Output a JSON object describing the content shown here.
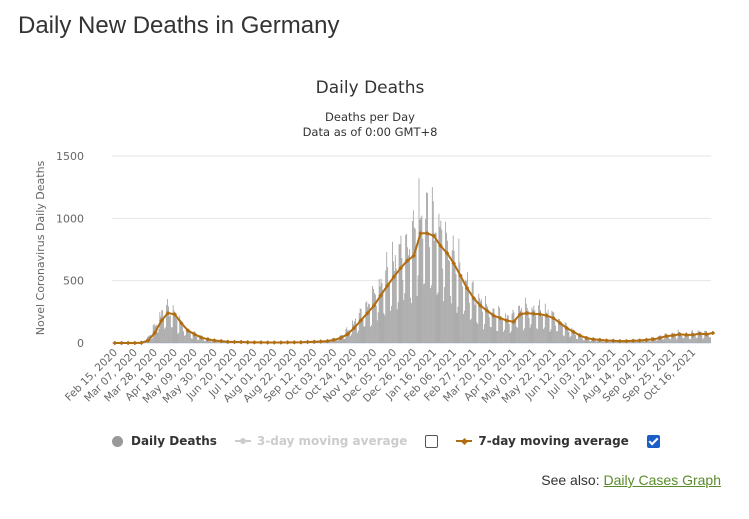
{
  "page": {
    "title": "Daily New Deaths in Germany"
  },
  "chart_data": {
    "type": "bar",
    "title": "Daily Deaths",
    "subtitle_lines": [
      "Deaths per Day",
      "Data as of 0:00 GMT+8"
    ],
    "ylabel": "Novel Coronavirus Daily Deaths",
    "xlabel": "",
    "ylim": [
      0,
      1500
    ],
    "y_ticks": [
      "0",
      "500",
      "1000",
      "1500"
    ],
    "grid": true,
    "x_tick_labels": [
      "Feb 15, 2020",
      "Mar 07, 2020",
      "Mar 28, 2020",
      "Apr 18, 2020",
      "May 09, 2020",
      "May 30, 2020",
      "Jun 20, 2020",
      "Jul 11, 2020",
      "Aug 01, 2020",
      "Aug 22, 2020",
      "Sep 12, 2020",
      "Oct 03, 2020",
      "Oct 24, 2020",
      "Nov 14, 2020",
      "Dec 05, 2020",
      "Dec 26, 2020",
      "Jan 16, 2021",
      "Feb 06, 2021",
      "Feb 27, 2021",
      "Mar 20, 2021",
      "Apr 10, 2021",
      "May 01, 2021",
      "May 22, 2021",
      "Jun 12, 2021",
      "Jul 03, 2021",
      "Jul 24, 2021",
      "Aug 14, 2021",
      "Sep 04, 2021",
      "Sep 25, 2021",
      "Oct 16, 2021"
    ],
    "series": [
      {
        "name": "Daily Deaths",
        "color": "#999999",
        "weekly_values": [
          0,
          0,
          0,
          0,
          2,
          20,
          80,
          180,
          240,
          230,
          160,
          100,
          70,
          45,
          30,
          20,
          15,
          10,
          8,
          8,
          6,
          5,
          5,
          4,
          4,
          4,
          5,
          5,
          6,
          8,
          10,
          12,
          15,
          25,
          40,
          70,
          120,
          180,
          240,
          300,
          380,
          460,
          530,
          600,
          660,
          700,
          880,
          880,
          860,
          780,
          720,
          640,
          540,
          440,
          360,
          300,
          260,
          220,
          200,
          180,
          170,
          230,
          240,
          235,
          230,
          220,
          200,
          160,
          120,
          90,
          60,
          40,
          30,
          25,
          20,
          18,
          15,
          15,
          18,
          20,
          25,
          30,
          40,
          55,
          60,
          70,
          65,
          65,
          75,
          70,
          80
        ]
      },
      {
        "name": "3-day moving average",
        "color": "#cccccc",
        "enabled": false
      },
      {
        "name": "7-day moving average",
        "color": "#b06d12",
        "enabled": true,
        "weekly_values": [
          0,
          0,
          0,
          0,
          2,
          20,
          80,
          180,
          240,
          230,
          160,
          100,
          70,
          45,
          30,
          20,
          15,
          10,
          8,
          8,
          6,
          5,
          5,
          4,
          4,
          4,
          5,
          5,
          6,
          8,
          10,
          12,
          15,
          25,
          40,
          70,
          120,
          180,
          240,
          300,
          380,
          460,
          530,
          600,
          660,
          700,
          880,
          880,
          860,
          780,
          720,
          640,
          540,
          440,
          360,
          300,
          260,
          220,
          200,
          180,
          170,
          230,
          240,
          235,
          230,
          220,
          200,
          160,
          120,
          90,
          60,
          40,
          30,
          25,
          20,
          18,
          15,
          15,
          18,
          20,
          25,
          30,
          40,
          55,
          60,
          70,
          65,
          65,
          75,
          70,
          80
        ]
      }
    ],
    "legend": {
      "placement": "bottom",
      "items": [
        {
          "label": "Daily Deaths"
        },
        {
          "label": "3-day moving average",
          "checked": false
        },
        {
          "label": "7-day moving average",
          "checked": true
        }
      ]
    }
  },
  "see_also": {
    "prefix": "See also:",
    "link_label": "Daily Cases Graph"
  }
}
